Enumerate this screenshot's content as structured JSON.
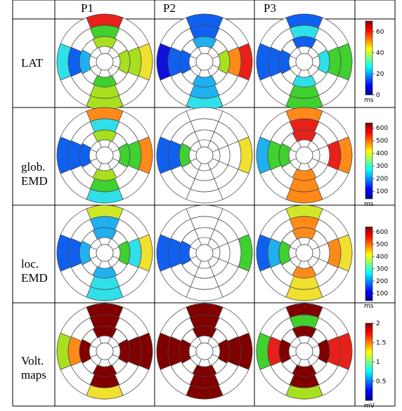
{
  "headers": [
    "P1",
    "P2",
    "P3"
  ],
  "rows": [
    {
      "label": "LAT",
      "unit": "ms",
      "ticks": [
        "60",
        "40",
        "20",
        "0"
      ],
      "range": [
        0,
        70
      ]
    },
    {
      "label": "glob.\nEMD",
      "unit": "ms",
      "ticks": [
        "600",
        "500",
        "400",
        "300",
        "200",
        "100"
      ],
      "range": [
        40,
        640
      ]
    },
    {
      "label": "loc.\nEMD",
      "unit": "ms",
      "ticks": [
        "600",
        "500",
        "400",
        "300",
        "200",
        "100"
      ],
      "range": [
        40,
        640
      ]
    },
    {
      "label": "Volt.\nmaps",
      "unit": "mV",
      "ticks": [
        "2",
        "1.5",
        "1",
        "0.5"
      ],
      "range": [
        0,
        2
      ]
    }
  ],
  "colors": {
    "segment_fill": {
      "red": "#e8201a",
      "orange": "#ff8a1a",
      "yellow": "#f0e030",
      "lime": "#a8e020",
      "green": "#40d030",
      "cyan": "#30e0e8",
      "lightblue": "#20b0f0",
      "blue": "#1060f0",
      "darkblue": "#1010d8",
      "darkred": "#800000",
      "yellowgreen": "#d0e828"
    }
  },
  "bullseyes": [
    [
      {
        "top": [
          "red",
          "green",
          "lime",
          null
        ],
        "right": [
          "yellow",
          "lime",
          "lime",
          null
        ],
        "bottom": [
          "lime",
          "lime",
          "green",
          null
        ],
        "left": [
          "cyan",
          "blue",
          "lightblue",
          null
        ]
      },
      {
        "top": [
          "blue",
          "blue",
          "lightblue",
          null
        ],
        "right": [
          "red",
          "orange",
          "lime",
          null
        ],
        "bottom": [
          "cyan",
          "lightblue",
          "lightblue",
          null
        ],
        "left": [
          "darkblue",
          "blue",
          "blue",
          null
        ]
      },
      {
        "top": [
          "blue",
          "cyan",
          "blue",
          null
        ],
        "right": [
          "green",
          "green",
          "cyan",
          null
        ],
        "bottom": [
          "green",
          "green",
          "cyan",
          null
        ],
        "left": [
          "blue",
          "blue",
          "blue",
          null
        ]
      }
    ],
    [
      {
        "top": [
          "orange",
          "cyan",
          "lime",
          null
        ],
        "right": [
          "orange",
          "green",
          "green",
          null
        ],
        "bottom": [
          "cyan",
          "green",
          "lime",
          null
        ],
        "left": [
          "blue",
          "blue",
          "blue",
          null
        ]
      },
      {
        "top": [
          null,
          null,
          null,
          null
        ],
        "right": [
          "yellow",
          null,
          null,
          null
        ],
        "bottom": [
          null,
          null,
          null,
          null
        ],
        "left": [
          "blue",
          "blue",
          "green",
          null
        ]
      },
      {
        "top": [
          "orange",
          "red",
          "red",
          null
        ],
        "right": [
          "orange",
          "red",
          null,
          null
        ],
        "bottom": [
          "orange",
          "orange",
          "orange",
          null
        ],
        "left": [
          "lightblue",
          "green",
          "green",
          null
        ]
      }
    ],
    [
      {
        "top": [
          "yellowgreen",
          "lightblue",
          "lightblue",
          null
        ],
        "right": [
          "yellow",
          "cyan",
          "green",
          null
        ],
        "bottom": [
          "cyan",
          "cyan",
          "lightblue",
          null
        ],
        "left": [
          "blue",
          "blue",
          "lightblue",
          null
        ]
      },
      {
        "top": [
          null,
          null,
          null,
          null
        ],
        "right": [
          "green",
          null,
          null,
          null
        ],
        "bottom": [
          null,
          null,
          null,
          null
        ],
        "left": [
          "blue",
          "blue",
          "blue",
          null
        ]
      },
      {
        "top": [
          "yellowgreen",
          "orange",
          "orange",
          null
        ],
        "right": [
          "yellow",
          "orange",
          null,
          null
        ],
        "bottom": [
          "yellow",
          "yellow",
          "orange",
          null
        ],
        "left": [
          "blue",
          "lightblue",
          "green",
          null
        ]
      }
    ],
    [
      {
        "top": [
          "darkred",
          "darkred",
          "darkred",
          null
        ],
        "right": [
          "darkred",
          "darkred",
          "darkred",
          null
        ],
        "bottom": [
          "yellow",
          "darkred",
          "darkred",
          null
        ],
        "left": [
          "lime",
          "orange",
          "darkred",
          null
        ]
      },
      {
        "top": [
          "darkred",
          "darkred",
          "darkred",
          null
        ],
        "right": [
          "darkred",
          "darkred",
          "darkred",
          null
        ],
        "bottom": [
          "darkred",
          "darkred",
          "darkred",
          null
        ],
        "left": [
          "darkred",
          "darkred",
          "darkred",
          null
        ]
      },
      {
        "top": [
          "darkred",
          "green",
          "darkred",
          null
        ],
        "right": [
          "red",
          "red",
          "darkred",
          null
        ],
        "bottom": [
          "lime",
          "darkred",
          "darkred",
          null
        ],
        "left": [
          "green",
          "red",
          "darkred",
          null
        ]
      }
    ]
  ]
}
